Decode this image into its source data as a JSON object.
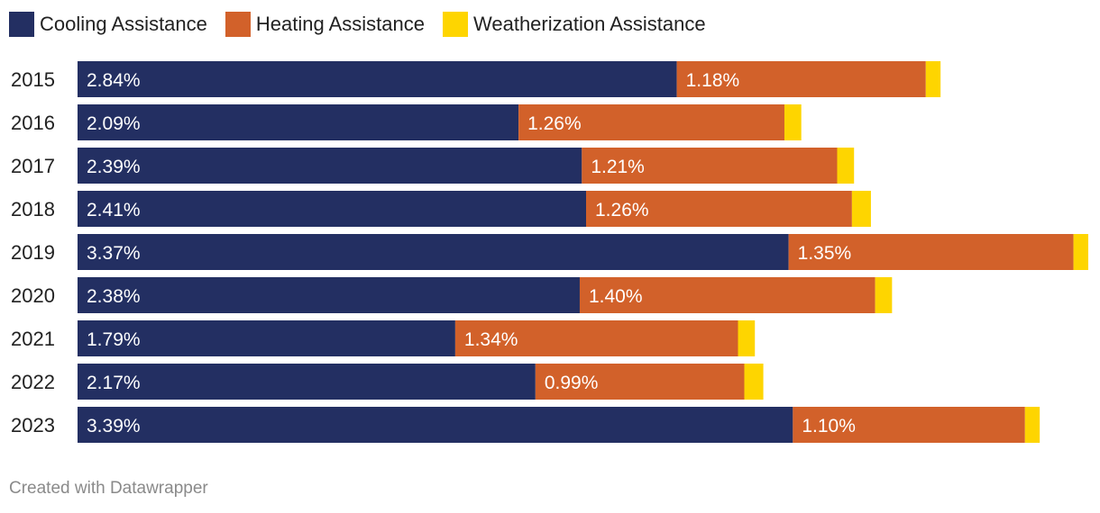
{
  "chart_data": {
    "type": "bar",
    "orientation": "horizontal",
    "stacked": true,
    "categories": [
      "2015",
      "2016",
      "2017",
      "2018",
      "2019",
      "2020",
      "2021",
      "2022",
      "2023"
    ],
    "series": [
      {
        "name": "Cooling Assistance",
        "color": "#232f62",
        "values": [
          2.84,
          2.09,
          2.39,
          2.41,
          3.37,
          2.38,
          1.79,
          2.17,
          3.39
        ],
        "labels": [
          "2.84%",
          "2.09%",
          "2.39%",
          "2.41%",
          "3.37%",
          "2.38%",
          "1.79%",
          "2.17%",
          "3.39%"
        ]
      },
      {
        "name": "Heating Assistance",
        "color": "#d2612a",
        "values": [
          1.18,
          1.26,
          1.21,
          1.26,
          1.35,
          1.4,
          1.34,
          0.99,
          1.1
        ],
        "labels": [
          "1.18%",
          "1.26%",
          "1.21%",
          "1.26%",
          "1.35%",
          "1.40%",
          "1.34%",
          "0.99%",
          "1.10%"
        ]
      },
      {
        "name": "Weatherization Assistance",
        "color": "#fed500",
        "values": [
          0.07,
          0.08,
          0.08,
          0.09,
          0.07,
          0.08,
          0.08,
          0.09,
          0.07
        ],
        "labels": [
          "",
          "",
          "",
          "",
          "",
          "",
          "",
          "",
          ""
        ]
      }
    ],
    "title": "",
    "xlabel": "",
    "ylabel": "",
    "xlim": [
      0,
      4.82
    ],
    "grid": false,
    "legend": "top-left"
  },
  "footer": {
    "credit": "Created with Datawrapper"
  }
}
